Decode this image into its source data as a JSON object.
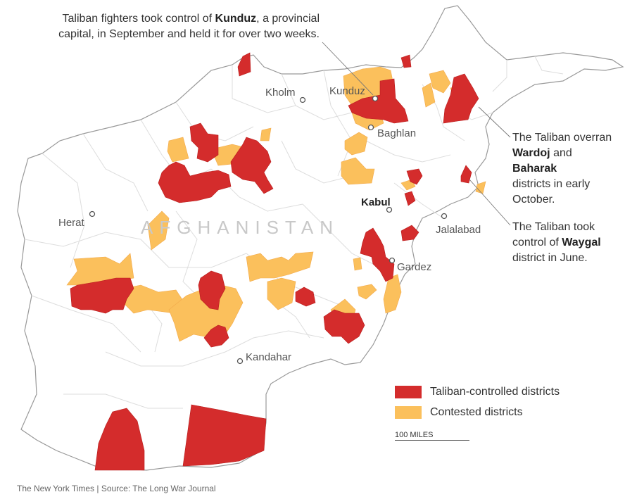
{
  "country_label": "AFGHANISTAN",
  "cities": [
    {
      "name": "Kholm",
      "bold": false
    },
    {
      "name": "Kunduz",
      "bold": false
    },
    {
      "name": "Baghlan",
      "bold": false
    },
    {
      "name": "Kabul",
      "bold": true
    },
    {
      "name": "Herat",
      "bold": false
    },
    {
      "name": "Jalalabad",
      "bold": false
    },
    {
      "name": "Gardez",
      "bold": false
    },
    {
      "name": "Kandahar",
      "bold": false
    }
  ],
  "annotations": {
    "kunduz": {
      "t1": "Taliban fighters took control of ",
      "b1": "Kunduz",
      "t2": ", a provincial",
      "t3": "capital, in September and held it for over two weeks."
    },
    "wardoj": {
      "t1": "The Taliban overran",
      "b1": "Wardoj",
      "t2": " and",
      "b2": "Baharak",
      "t3": "districts in early",
      "t4": "October."
    },
    "waygal": {
      "t1": "The Taliban took",
      "t2": "control of ",
      "b1": "Waygal",
      "t3": "district in June."
    }
  },
  "legend": {
    "items": [
      {
        "label": "Taliban-controlled districts",
        "color": "#d42c2c"
      },
      {
        "label": "Contested districts",
        "color": "#fbc05c"
      }
    ],
    "scale_label": "100 MILES"
  },
  "credit": "The New York Times | Source: The Long War Journal",
  "colors": {
    "taliban": "#d42c2c",
    "contested": "#fbc05c",
    "country_fill": "#ffffff",
    "border": "#999999",
    "district_lines": "#dddddd"
  }
}
